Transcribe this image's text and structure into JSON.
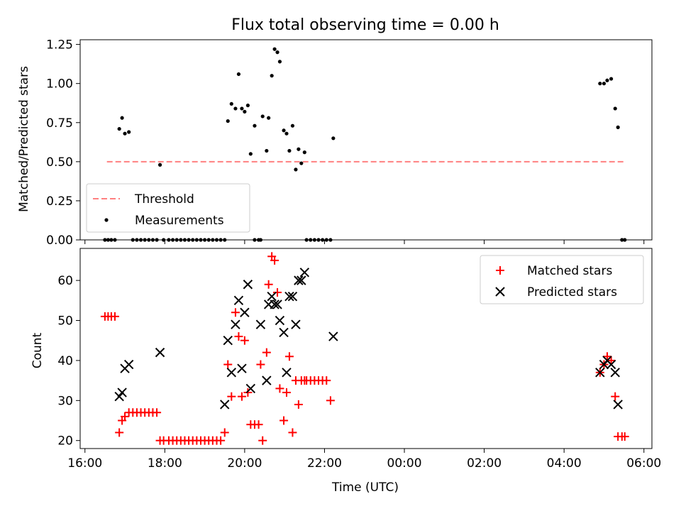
{
  "colors": {
    "threshold": "#ff8080",
    "measurement": "#000000",
    "matched": "#ff0000",
    "predicted": "#000000"
  },
  "chart_data": [
    {
      "type": "scatter",
      "title": "Flux total observing time = 0.00 h",
      "xlabel": "",
      "ylabel": "Matched/Predicted stars",
      "x_unit": "hours since 16:00 UTC",
      "xlim": [
        -0.12,
        14.2
      ],
      "ylim": [
        0,
        1.28
      ],
      "yticks": [
        0,
        0.25,
        0.5,
        0.75,
        1.0,
        1.25
      ],
      "ytick_labels": [
        "0.00",
        "0.25",
        "0.50",
        "0.75",
        "1.00",
        "1.25"
      ],
      "xticks": [
        0,
        2,
        4,
        6,
        8,
        10,
        12,
        14
      ],
      "legend": {
        "position": "lower-left",
        "entries": [
          {
            "label": "Threshold",
            "marker": "dashed-line"
          },
          {
            "label": "Measurements",
            "marker": "dot"
          }
        ]
      },
      "threshold": {
        "name": "Threshold",
        "y": 0.5,
        "x_range": [
          0.55,
          13.5
        ]
      },
      "series": [
        {
          "name": "Measurements",
          "marker": "dot",
          "points": [
            [
              0.5,
              0
            ],
            [
              0.58,
              0
            ],
            [
              0.66,
              0
            ],
            [
              0.75,
              0
            ],
            [
              0.86,
              0.71
            ],
            [
              0.93,
              0.78
            ],
            [
              1.0,
              0.68
            ],
            [
              1.1,
              0.69
            ],
            [
              1.2,
              0
            ],
            [
              1.3,
              0
            ],
            [
              1.4,
              0
            ],
            [
              1.5,
              0
            ],
            [
              1.6,
              0
            ],
            [
              1.7,
              0
            ],
            [
              1.8,
              0
            ],
            [
              1.88,
              0.48
            ],
            [
              1.97,
              0
            ],
            [
              2.1,
              0
            ],
            [
              2.2,
              0
            ],
            [
              2.3,
              0
            ],
            [
              2.4,
              0
            ],
            [
              2.5,
              0
            ],
            [
              2.6,
              0
            ],
            [
              2.7,
              0
            ],
            [
              2.8,
              0
            ],
            [
              2.9,
              0
            ],
            [
              3.0,
              0
            ],
            [
              3.1,
              0
            ],
            [
              3.2,
              0
            ],
            [
              3.3,
              0
            ],
            [
              3.4,
              0
            ],
            [
              3.5,
              0
            ],
            [
              3.58,
              0.76
            ],
            [
              3.67,
              0.87
            ],
            [
              3.77,
              0.84
            ],
            [
              3.85,
              1.06
            ],
            [
              3.93,
              0.84
            ],
            [
              4.0,
              0.82
            ],
            [
              4.08,
              0.86
            ],
            [
              4.15,
              0.55
            ],
            [
              4.25,
              0.73
            ],
            [
              4.25,
              0
            ],
            [
              4.35,
              0
            ],
            [
              4.4,
              0
            ],
            [
              4.45,
              0.79
            ],
            [
              4.55,
              0.57
            ],
            [
              4.6,
              0.78
            ],
            [
              4.68,
              1.05
            ],
            [
              4.75,
              1.22
            ],
            [
              4.82,
              1.2
            ],
            [
              4.88,
              1.14
            ],
            [
              4.98,
              0.7
            ],
            [
              5.05,
              0.68
            ],
            [
              5.12,
              0.57
            ],
            [
              5.2,
              0.73
            ],
            [
              5.28,
              0.45
            ],
            [
              5.35,
              0.58
            ],
            [
              5.42,
              0.49
            ],
            [
              5.5,
              0.56
            ],
            [
              5.55,
              0
            ],
            [
              5.65,
              0
            ],
            [
              5.75,
              0
            ],
            [
              5.85,
              0
            ],
            [
              5.95,
              0
            ],
            [
              6.05,
              0
            ],
            [
              6.15,
              0
            ],
            [
              6.22,
              0.65
            ],
            [
              12.9,
              1.0
            ],
            [
              13.0,
              1.0
            ],
            [
              13.08,
              1.02
            ],
            [
              13.18,
              1.03
            ],
            [
              13.28,
              0.84
            ],
            [
              13.35,
              0.72
            ],
            [
              13.45,
              0
            ],
            [
              13.52,
              0
            ]
          ]
        }
      ]
    },
    {
      "type": "scatter",
      "title": "",
      "xlabel": "Time (UTC)",
      "ylabel": "Count",
      "x_unit": "hours since 16:00 UTC",
      "xlim": [
        -0.12,
        14.2
      ],
      "ylim": [
        18,
        68
      ],
      "yticks": [
        20,
        30,
        40,
        50,
        60
      ],
      "ytick_labels": [
        "20",
        "30",
        "40",
        "50",
        "60"
      ],
      "xticks": [
        0,
        2,
        4,
        6,
        8,
        10,
        12,
        14
      ],
      "xtick_labels": [
        "16:00",
        "18:00",
        "20:00",
        "22:00",
        "00:00",
        "02:00",
        "04:00",
        "06:00"
      ],
      "legend": {
        "position": "upper-right",
        "entries": [
          {
            "label": "Matched stars",
            "marker": "plus"
          },
          {
            "label": "Predicted stars",
            "marker": "x"
          }
        ]
      },
      "series": [
        {
          "name": "Matched stars",
          "marker": "plus",
          "points": [
            [
              0.5,
              51
            ],
            [
              0.58,
              51
            ],
            [
              0.66,
              51
            ],
            [
              0.75,
              51
            ],
            [
              0.86,
              22
            ],
            [
              0.93,
              25
            ],
            [
              1.0,
              26
            ],
            [
              1.1,
              27
            ],
            [
              1.2,
              27
            ],
            [
              1.3,
              27
            ],
            [
              1.4,
              27
            ],
            [
              1.5,
              27
            ],
            [
              1.6,
              27
            ],
            [
              1.7,
              27
            ],
            [
              1.8,
              27
            ],
            [
              1.88,
              20
            ],
            [
              1.97,
              20
            ],
            [
              2.1,
              20
            ],
            [
              2.2,
              20
            ],
            [
              2.3,
              20
            ],
            [
              2.4,
              20
            ],
            [
              2.5,
              20
            ],
            [
              2.6,
              20
            ],
            [
              2.7,
              20
            ],
            [
              2.8,
              20
            ],
            [
              2.9,
              20
            ],
            [
              3.0,
              20
            ],
            [
              3.1,
              20
            ],
            [
              3.2,
              20
            ],
            [
              3.3,
              20
            ],
            [
              3.4,
              20
            ],
            [
              3.5,
              22
            ],
            [
              3.58,
              39
            ],
            [
              3.67,
              31
            ],
            [
              3.77,
              52
            ],
            [
              3.85,
              46
            ],
            [
              3.93,
              31
            ],
            [
              4.0,
              45
            ],
            [
              4.08,
              32
            ],
            [
              4.15,
              24
            ],
            [
              4.25,
              24
            ],
            [
              4.35,
              24
            ],
            [
              4.4,
              39
            ],
            [
              4.45,
              20
            ],
            [
              4.55,
              42
            ],
            [
              4.6,
              59
            ],
            [
              4.68,
              66
            ],
            [
              4.75,
              65
            ],
            [
              4.82,
              57
            ],
            [
              4.88,
              33
            ],
            [
              4.98,
              25
            ],
            [
              5.05,
              32
            ],
            [
              5.12,
              41
            ],
            [
              5.2,
              22
            ],
            [
              5.28,
              35
            ],
            [
              5.35,
              29
            ],
            [
              5.42,
              35
            ],
            [
              5.5,
              35
            ],
            [
              5.55,
              35
            ],
            [
              5.65,
              35
            ],
            [
              5.75,
              35
            ],
            [
              5.85,
              35
            ],
            [
              5.95,
              35
            ],
            [
              6.05,
              35
            ],
            [
              6.15,
              30
            ],
            [
              12.9,
              37
            ],
            [
              13.0,
              39
            ],
            [
              13.08,
              41
            ],
            [
              13.18,
              40
            ],
            [
              13.28,
              31
            ],
            [
              13.35,
              21
            ],
            [
              13.45,
              21
            ],
            [
              13.52,
              21
            ]
          ]
        },
        {
          "name": "Predicted stars",
          "marker": "x",
          "points": [
            [
              0.86,
              31
            ],
            [
              0.93,
              32
            ],
            [
              1.0,
              38
            ],
            [
              1.1,
              39
            ],
            [
              1.88,
              42
            ],
            [
              3.5,
              29
            ],
            [
              3.58,
              45
            ],
            [
              3.67,
              37
            ],
            [
              3.77,
              49
            ],
            [
              3.85,
              55
            ],
            [
              3.93,
              38
            ],
            [
              4.0,
              52
            ],
            [
              4.08,
              59
            ],
            [
              4.15,
              33
            ],
            [
              4.4,
              49
            ],
            [
              4.55,
              35
            ],
            [
              4.6,
              54
            ],
            [
              4.68,
              56
            ],
            [
              4.75,
              54
            ],
            [
              4.82,
              54
            ],
            [
              4.88,
              50
            ],
            [
              4.98,
              47
            ],
            [
              5.05,
              37
            ],
            [
              5.12,
              56
            ],
            [
              5.2,
              56
            ],
            [
              5.28,
              49
            ],
            [
              5.35,
              60
            ],
            [
              5.42,
              60
            ],
            [
              5.5,
              62
            ],
            [
              6.22,
              46
            ],
            [
              12.9,
              37
            ],
            [
              13.0,
              39
            ],
            [
              13.08,
              40
            ],
            [
              13.18,
              39
            ],
            [
              13.28,
              37
            ],
            [
              13.35,
              29
            ]
          ]
        }
      ]
    }
  ]
}
